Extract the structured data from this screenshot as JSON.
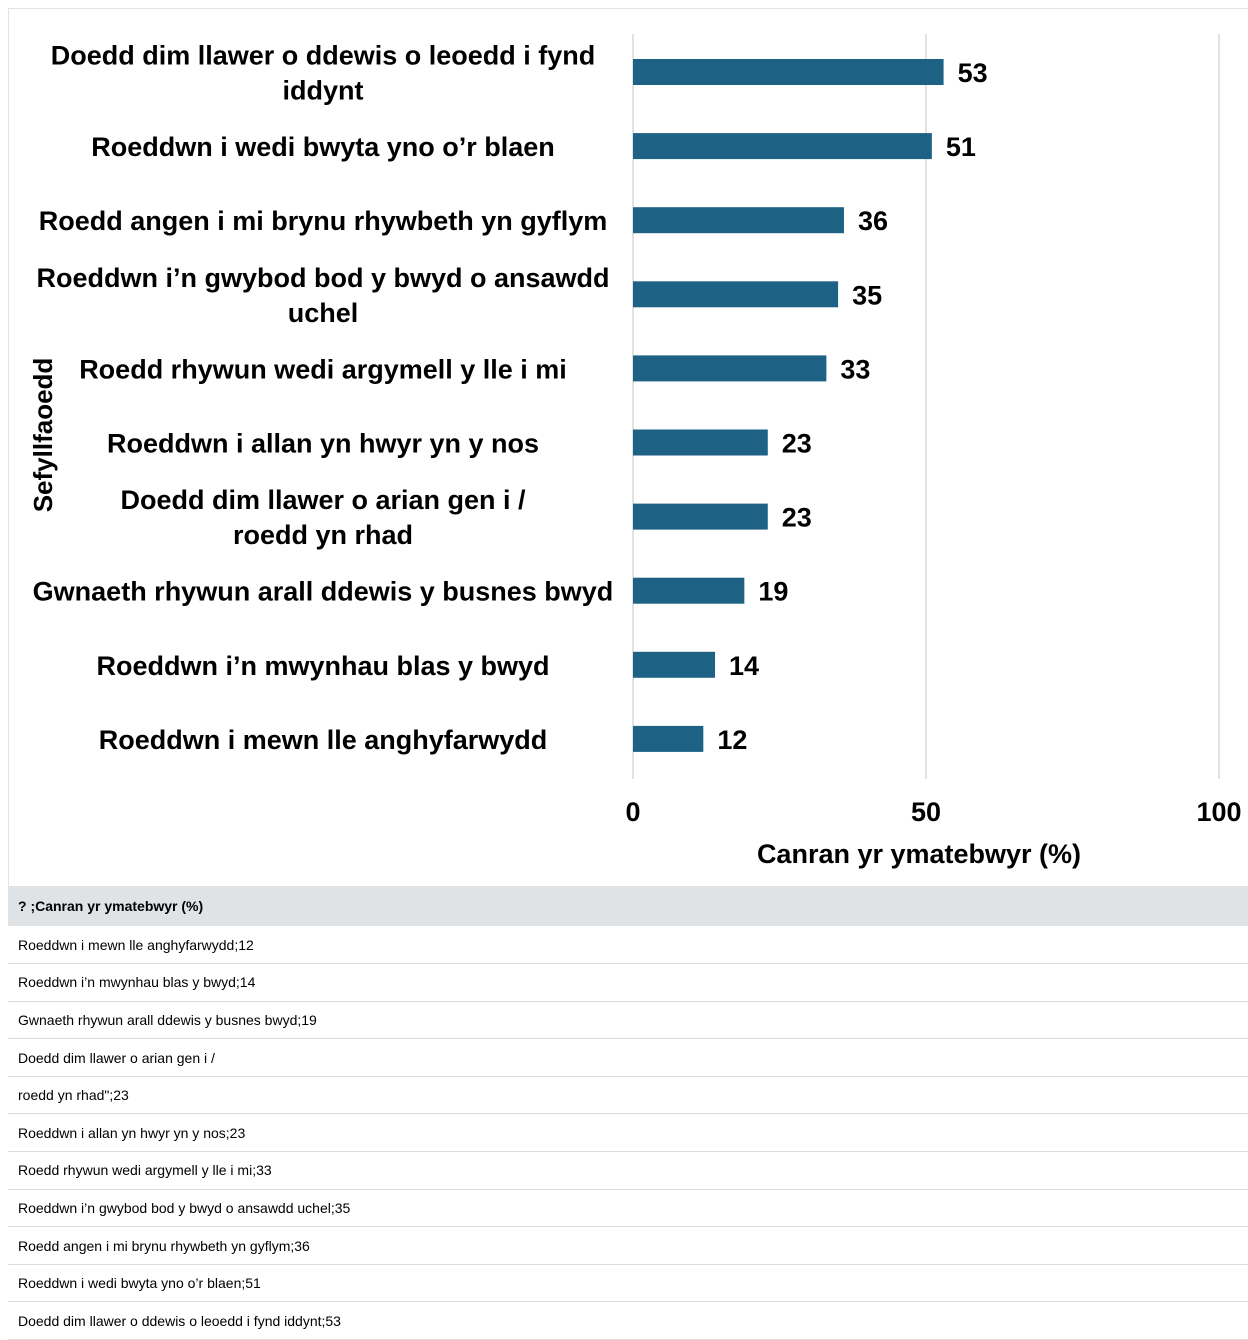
{
  "chart_data": {
    "type": "bar",
    "orientation": "horizontal",
    "categories": [
      [
        "Doedd dim llawer o ddewis o leoedd i fynd",
        "iddynt"
      ],
      [
        "Roeddwn i wedi bwyta yno o’r blaen"
      ],
      [
        "Roedd angen i mi brynu rhywbeth yn gyflym"
      ],
      [
        "Roeddwn i’n gwybod bod y bwyd o ansawdd",
        "uchel"
      ],
      [
        "Roedd rhywun wedi argymell y lle i mi"
      ],
      [
        "Roeddwn i allan yn hwyr yn y nos"
      ],
      [
        "Doedd dim llawer o arian gen i /",
        "roedd yn rhad"
      ],
      [
        "Gwnaeth rhywun arall ddewis y busnes bwyd"
      ],
      [
        "Roeddwn i’n mwynhau blas y bwyd"
      ],
      [
        "Roeddwn i mewn lle anghyfarwydd"
      ]
    ],
    "values": [
      53,
      51,
      36,
      35,
      33,
      23,
      23,
      19,
      14,
      12
    ],
    "data_labels": [
      "53",
      "51",
      "36",
      "35",
      "33",
      "23",
      "23",
      "19",
      "14",
      "12"
    ],
    "xlabel": "Canran yr ymatebwyr (%)",
    "ylabel": "Sefyllfaoedd",
    "xlim": [
      0,
      100
    ],
    "x_ticks": [
      "0",
      "50",
      "100"
    ],
    "grid": true,
    "bar_color": "#1d6285",
    "grid_color": "#d9d9d9"
  },
  "table": {
    "header": "? ;Canran yr ymatebwyr (%)",
    "rows": [
      "Roeddwn i mewn lle anghyfarwydd;12",
      "Roeddwn i’n mwynhau blas y bwyd;14",
      "Gwnaeth rhywun arall ddewis y busnes bwyd;19",
      "Doedd dim llawer o arian gen i /",
      "roedd yn rhad\";23",
      "Roeddwn i allan yn hwyr yn y nos;23",
      "Roedd rhywun wedi argymell y lle i mi;33",
      "Roeddwn i’n gwybod bod y bwyd o ansawdd uchel;35",
      "Roedd angen i mi brynu rhywbeth yn gyflym;36",
      "Roeddwn i wedi bwyta yno o’r blaen;51",
      "Doedd dim llawer o ddewis o leoedd i fynd iddynt;53"
    ]
  }
}
